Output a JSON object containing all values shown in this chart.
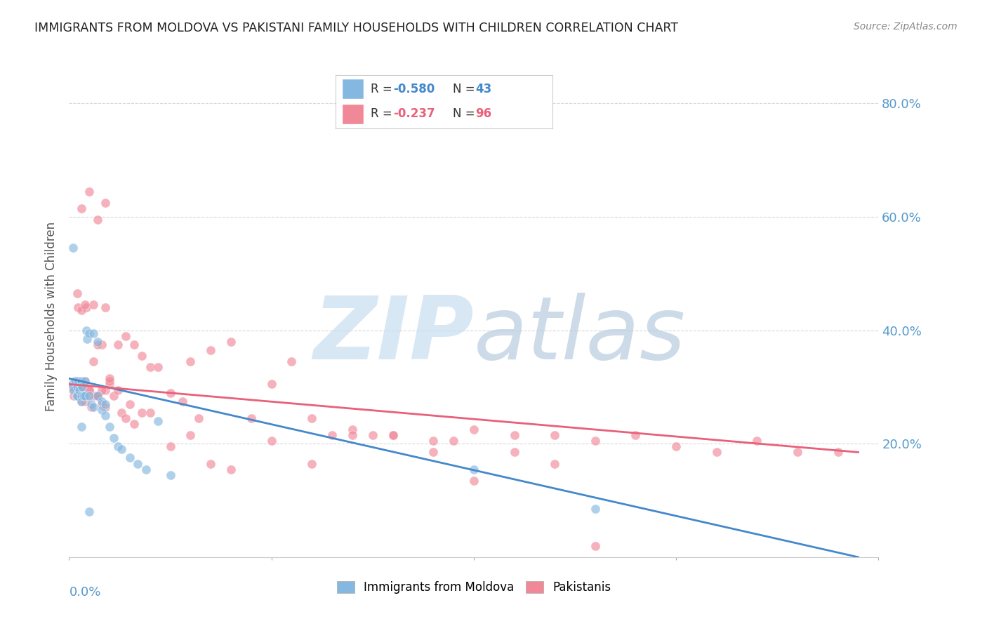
{
  "title": "IMMIGRANTS FROM MOLDOVA VS PAKISTANI FAMILY HOUSEHOLDS WITH CHILDREN CORRELATION CHART",
  "source": "Source: ZipAtlas.com",
  "ylabel": "Family Households with Children",
  "y_ticks": [
    0.0,
    0.2,
    0.4,
    0.6,
    0.8
  ],
  "y_tick_labels": [
    "",
    "20.0%",
    "40.0%",
    "60.0%",
    "80.0%"
  ],
  "x_lim": [
    0.0,
    0.2
  ],
  "y_lim": [
    0.0,
    0.85
  ],
  "blue_R": "-0.580",
  "blue_N": "43",
  "pink_R": "-0.237",
  "pink_N": "96",
  "blue_scatter_x": [
    0.0008,
    0.001,
    0.0012,
    0.0015,
    0.0018,
    0.002,
    0.002,
    0.0022,
    0.0025,
    0.003,
    0.003,
    0.003,
    0.0032,
    0.0035,
    0.004,
    0.004,
    0.0042,
    0.0045,
    0.005,
    0.005,
    0.0055,
    0.006,
    0.006,
    0.007,
    0.007,
    0.008,
    0.008,
    0.009,
    0.009,
    0.01,
    0.011,
    0.012,
    0.013,
    0.015,
    0.017,
    0.019,
    0.022,
    0.025,
    0.1,
    0.13,
    0.001,
    0.003,
    0.005
  ],
  "blue_scatter_y": [
    0.305,
    0.3,
    0.295,
    0.31,
    0.285,
    0.3,
    0.285,
    0.31,
    0.295,
    0.31,
    0.285,
    0.275,
    0.3,
    0.285,
    0.31,
    0.285,
    0.4,
    0.385,
    0.395,
    0.285,
    0.27,
    0.265,
    0.395,
    0.285,
    0.38,
    0.275,
    0.26,
    0.27,
    0.25,
    0.23,
    0.21,
    0.195,
    0.19,
    0.175,
    0.165,
    0.155,
    0.24,
    0.145,
    0.155,
    0.085,
    0.545,
    0.23,
    0.08
  ],
  "pink_scatter_x": [
    0.0005,
    0.001,
    0.0012,
    0.0015,
    0.002,
    0.002,
    0.0022,
    0.0025,
    0.003,
    0.003,
    0.003,
    0.0032,
    0.0035,
    0.004,
    0.004,
    0.0042,
    0.005,
    0.005,
    0.0055,
    0.006,
    0.006,
    0.0065,
    0.007,
    0.007,
    0.008,
    0.008,
    0.009,
    0.009,
    0.01,
    0.01,
    0.011,
    0.012,
    0.013,
    0.014,
    0.015,
    0.016,
    0.018,
    0.02,
    0.022,
    0.025,
    0.028,
    0.03,
    0.032,
    0.035,
    0.04,
    0.045,
    0.05,
    0.055,
    0.06,
    0.065,
    0.07,
    0.075,
    0.08,
    0.09,
    0.095,
    0.1,
    0.11,
    0.12,
    0.13,
    0.14,
    0.15,
    0.16,
    0.17,
    0.18,
    0.19,
    0.002,
    0.003,
    0.004,
    0.005,
    0.006,
    0.007,
    0.008,
    0.009,
    0.01,
    0.012,
    0.014,
    0.016,
    0.018,
    0.02,
    0.025,
    0.03,
    0.035,
    0.04,
    0.05,
    0.06,
    0.07,
    0.08,
    0.09,
    0.1,
    0.11,
    0.12,
    0.13,
    0.003,
    0.005,
    0.007,
    0.009
  ],
  "pink_scatter_y": [
    0.3,
    0.295,
    0.285,
    0.31,
    0.305,
    0.285,
    0.44,
    0.295,
    0.3,
    0.285,
    0.275,
    0.3,
    0.285,
    0.31,
    0.275,
    0.44,
    0.295,
    0.285,
    0.265,
    0.285,
    0.445,
    0.285,
    0.285,
    0.285,
    0.375,
    0.27,
    0.44,
    0.295,
    0.305,
    0.31,
    0.285,
    0.375,
    0.255,
    0.39,
    0.27,
    0.375,
    0.355,
    0.335,
    0.335,
    0.29,
    0.275,
    0.345,
    0.245,
    0.365,
    0.38,
    0.245,
    0.305,
    0.345,
    0.245,
    0.215,
    0.225,
    0.215,
    0.215,
    0.205,
    0.205,
    0.135,
    0.215,
    0.215,
    0.205,
    0.215,
    0.195,
    0.185,
    0.205,
    0.185,
    0.185,
    0.465,
    0.435,
    0.445,
    0.295,
    0.345,
    0.375,
    0.295,
    0.265,
    0.315,
    0.295,
    0.245,
    0.235,
    0.255,
    0.255,
    0.195,
    0.215,
    0.165,
    0.155,
    0.205,
    0.165,
    0.215,
    0.215,
    0.185,
    0.225,
    0.185,
    0.165,
    0.02,
    0.615,
    0.645,
    0.595,
    0.625
  ],
  "blue_line_x": [
    0.0,
    0.195
  ],
  "blue_line_y": [
    0.315,
    0.0
  ],
  "pink_line_x": [
    0.0,
    0.195
  ],
  "pink_line_y": [
    0.305,
    0.185
  ],
  "scatter_blue_color": "#85b8e0",
  "scatter_pink_color": "#f08898",
  "line_blue_color": "#4488cc",
  "line_pink_color": "#e8607a",
  "grid_color": "#d8d8d8",
  "title_color": "#222222",
  "axis_label_color": "#5599cc",
  "bg_color": "#ffffff"
}
